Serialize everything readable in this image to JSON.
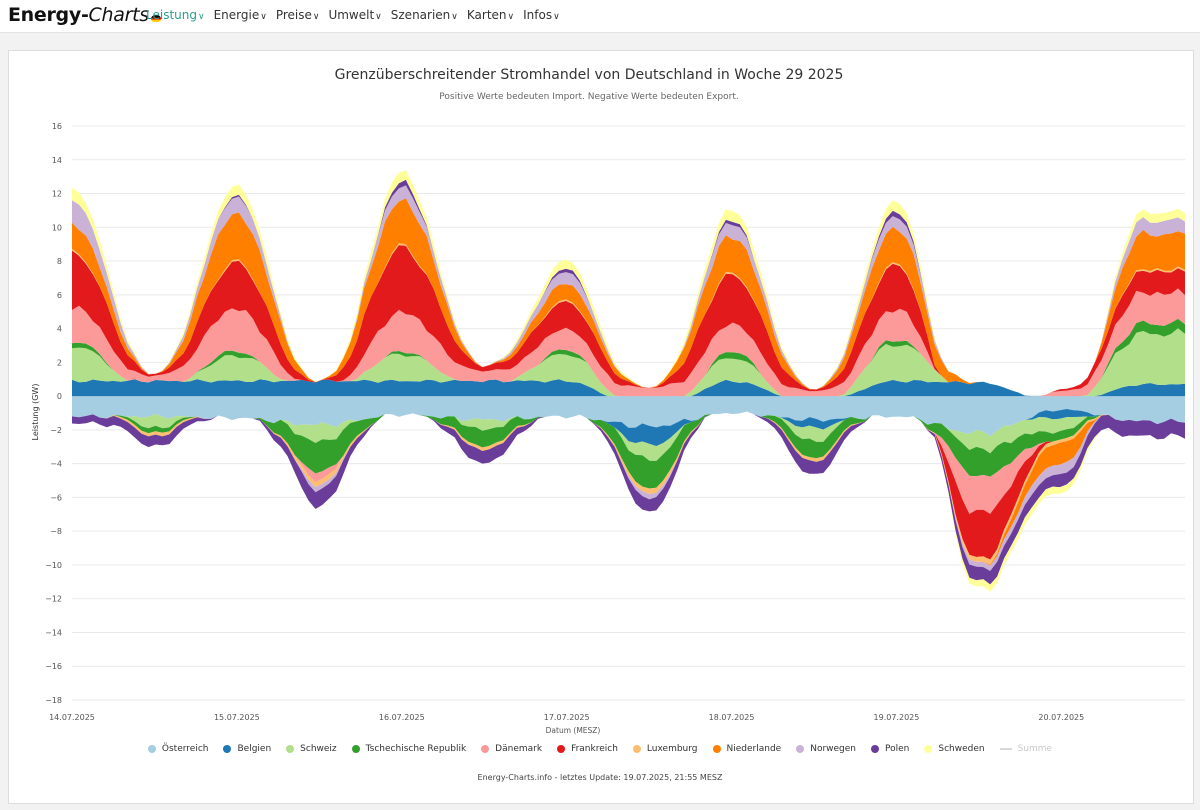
{
  "header": {
    "brand_main": "Energy-",
    "brand_italic": "Charts",
    "nav": [
      {
        "label": "Leistung",
        "active": true
      },
      {
        "label": "Energie"
      },
      {
        "label": "Preise"
      },
      {
        "label": "Umwelt"
      },
      {
        "label": "Szenarien"
      },
      {
        "label": "Karten"
      },
      {
        "label": "Infos"
      }
    ]
  },
  "chart_data": {
    "type": "area",
    "stacked": true,
    "title": "Grenzüberschreitender Stromhandel von Deutschland in Woche 29 2025",
    "subtitle": "Positive Werte bedeuten Import. Negative Werte bedeuten Export.",
    "ylabel": "Leistung (GW)",
    "xlabel": "Datum (MESZ)",
    "ylim": [
      -18,
      16
    ],
    "yticks": [
      16,
      14,
      12,
      10,
      8,
      6,
      4,
      2,
      0,
      -2,
      -4,
      -6,
      -8,
      -10,
      -12,
      -14,
      -16,
      -18
    ],
    "xticks": [
      "14.07.2025",
      "15.07.2025",
      "16.07.2025",
      "17.07.2025",
      "18.07.2025",
      "19.07.2025",
      "20.07.2025"
    ],
    "x": [
      0,
      0.5,
      1,
      1.5,
      2,
      2.5,
      3,
      3.5,
      4,
      4.5,
      5,
      5.5,
      6,
      6.5
    ],
    "x_unit": "days since 14.07.2025 00:00",
    "series": [
      {
        "name": "Österreich",
        "color": "#a6cee3",
        "values": [
          -1.2,
          -1.2,
          -1.3,
          -1.7,
          -1.1,
          -1.4,
          -1.2,
          -1.8,
          -1.0,
          -1.4,
          -1.2,
          -2.2,
          -0.8,
          -1.5
        ]
      },
      {
        "name": "Belgien",
        "color": "#1f78b4",
        "values": [
          0.9,
          0.9,
          0.9,
          0.9,
          0.9,
          0.9,
          0.9,
          -1.1,
          0.9,
          -0.5,
          0.9,
          0.8,
          -0.5,
          0.7
        ]
      },
      {
        "name": "Schweiz",
        "color": "#b2df8a",
        "values": [
          2.1,
          -0.7,
          1.5,
          -1.0,
          1.6,
          -0.6,
          1.6,
          -0.9,
          1.4,
          -0.8,
          2.2,
          -1.0,
          -0.8,
          3.0
        ]
      },
      {
        "name": "Tschechische Republik",
        "color": "#33a02c",
        "values": [
          0.3,
          -0.3,
          0.3,
          -1.8,
          0.2,
          -1.0,
          0.3,
          -1.7,
          0.4,
          -1.0,
          0.3,
          -1.6,
          -0.5,
          0.6
        ]
      },
      {
        "name": "Dänemark",
        "color": "#fb9a99",
        "values": [
          2.0,
          0.3,
          2.5,
          -0.5,
          2.3,
          0.6,
          1.2,
          0.5,
          1.6,
          0.3,
          1.8,
          -2.2,
          0.3,
          1.8
        ]
      },
      {
        "name": "Frankreich",
        "color": "#e31a1c",
        "values": [
          3.2,
          0.1,
          2.7,
          0.0,
          3.8,
          0.3,
          1.6,
          0.0,
          2.9,
          0.1,
          2.6,
          -2.8,
          0.1,
          1.3
        ]
      },
      {
        "name": "Luxemburg",
        "color": "#fdbf6f",
        "values": [
          0.1,
          -0.2,
          0.1,
          -0.3,
          0.1,
          -0.2,
          0.1,
          -0.3,
          0.1,
          -0.2,
          0.1,
          -0.3,
          -0.2,
          0.1
        ]
      },
      {
        "name": "Niederlande",
        "color": "#ff7f00",
        "values": [
          1.6,
          0.0,
          2.8,
          0.0,
          2.7,
          0.0,
          1.0,
          0.0,
          2.2,
          0.0,
          2.1,
          0.0,
          -1.3,
          2.1
        ]
      },
      {
        "name": "Norwegen",
        "color": "#cab2d6",
        "values": [
          1.4,
          0.0,
          1.0,
          -0.3,
          0.8,
          0.0,
          0.7,
          -0.3,
          0.8,
          0.0,
          0.7,
          -0.3,
          -0.6,
          0.8
        ]
      },
      {
        "name": "Polen",
        "color": "#6a3d9a",
        "values": [
          -0.4,
          -0.6,
          0.1,
          -1.0,
          0.3,
          -0.8,
          0.2,
          -0.8,
          0.2,
          -0.8,
          0.3,
          -0.8,
          -0.7,
          -0.9
        ]
      },
      {
        "name": "Schweden",
        "color": "#ffff99",
        "values": [
          0.7,
          0.0,
          0.6,
          0.0,
          0.6,
          0.0,
          0.5,
          0.0,
          0.6,
          0.0,
          0.6,
          -0.4,
          -0.4,
          0.5
        ]
      }
    ],
    "legend": [
      {
        "name": "Österreich",
        "color": "#a6cee3"
      },
      {
        "name": "Belgien",
        "color": "#1f78b4"
      },
      {
        "name": "Schweiz",
        "color": "#b2df8a"
      },
      {
        "name": "Tschechische Republik",
        "color": "#33a02c"
      },
      {
        "name": "Dänemark",
        "color": "#fb9a99"
      },
      {
        "name": "Frankreich",
        "color": "#e31a1c"
      },
      {
        "name": "Luxemburg",
        "color": "#fdbf6f"
      },
      {
        "name": "Niederlande",
        "color": "#ff7f00"
      },
      {
        "name": "Norwegen",
        "color": "#cab2d6"
      },
      {
        "name": "Polen",
        "color": "#6a3d9a"
      },
      {
        "name": "Schweden",
        "color": "#ffff99"
      },
      {
        "name": "Summe",
        "color": "#d9d9d9",
        "hidden": true
      }
    ]
  },
  "footer": "Energy-Charts.info - letztes Update: 19.07.2025, 21:55 MESZ"
}
